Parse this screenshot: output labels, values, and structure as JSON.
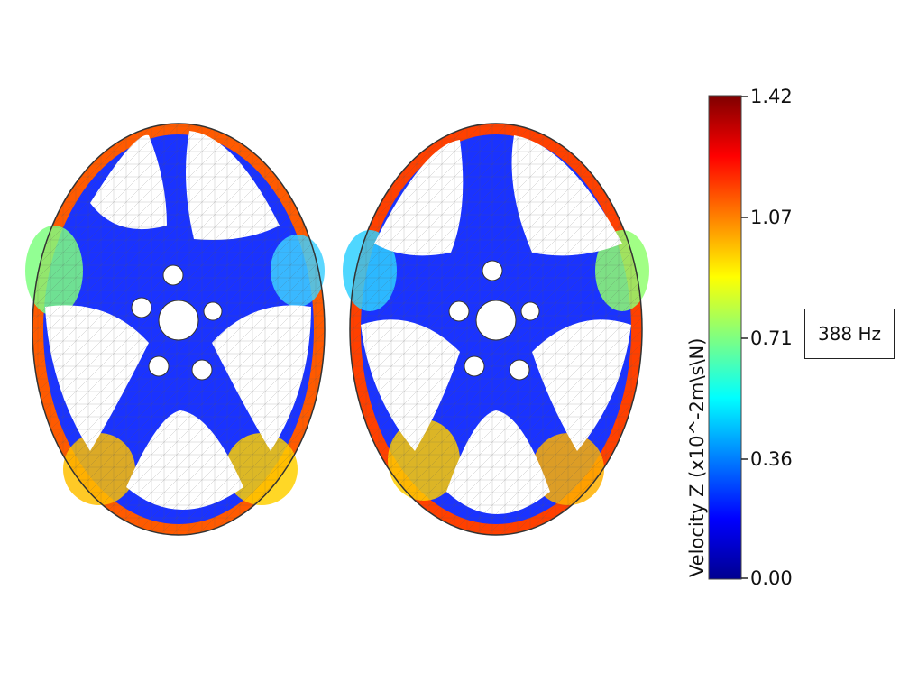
{
  "colorbar": {
    "title": "Velocity Z (x10^-2m\\s\\N)",
    "ticks": [
      "1.42",
      "1.07",
      "0.71",
      "0.36",
      "0.00"
    ],
    "min": 0.0,
    "max": 1.42,
    "colormap": [
      "#00008f",
      "#0000ff",
      "#0080ff",
      "#00ffff",
      "#80ff80",
      "#ffff00",
      "#ff8000",
      "#ff0000",
      "#800000"
    ]
  },
  "frequency_label": "388 Hz",
  "wheels": [
    {
      "name": "left-wheel-mode-shape",
      "spokes": 5
    },
    {
      "name": "right-wheel-mode-shape",
      "spokes": 5
    }
  ]
}
